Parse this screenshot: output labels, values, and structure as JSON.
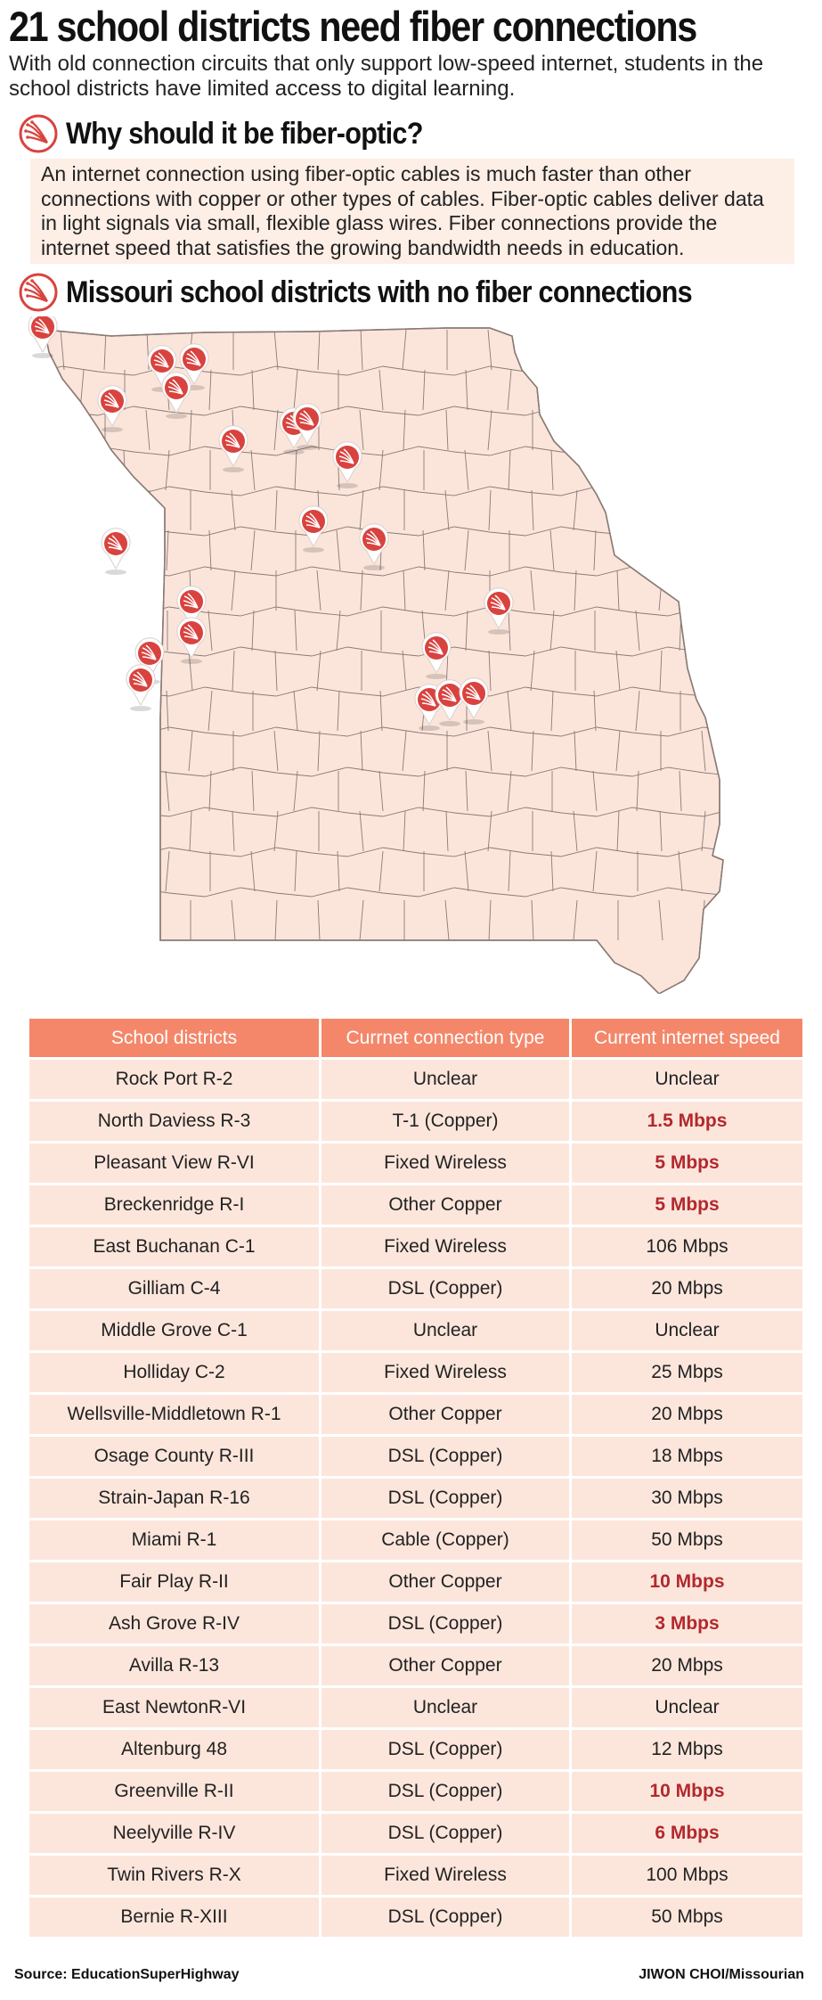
{
  "title": "21 school districts need fiber connections",
  "subtitle": "With old connection circuits that only support low-speed internet, students in the school districts have limited access to digital learning.",
  "section_why": {
    "heading": "Why should it be fiber-optic?",
    "body": "An internet connection using fiber-optic cables is much faster than other connections with copper or other types of cables. Fiber-optic cables deliver data in light signals via small, flexible glass wires. Fiber connections provide the internet speed that satisfies the growing bandwidth needs in education."
  },
  "section_map": {
    "heading": "Missouri school districts with no fiber connections",
    "marker_icon": "fiber-optic-pin-icon",
    "marker_count": 21
  },
  "colors": {
    "accent": "#f4876a",
    "marker": "#d9433f",
    "map_fill": "#fbe5db",
    "map_border": "#8a7a74",
    "row_fill": "#fce6dc",
    "slow_text": "#b3282d"
  },
  "table": {
    "headers": [
      "School districts",
      "Currnet connection type",
      "Current internet speed"
    ],
    "rows": [
      {
        "district": "Rock Port R-2",
        "type": "Unclear",
        "speed": "Unclear",
        "slow": false
      },
      {
        "district": "North Daviess R-3",
        "type": "T-1 (Copper)",
        "speed": "1.5 Mbps",
        "slow": true
      },
      {
        "district": "Pleasant View R-VI",
        "type": "Fixed Wireless",
        "speed": "5 Mbps",
        "slow": true
      },
      {
        "district": "Breckenridge R-I",
        "type": "Other Copper",
        "speed": "5 Mbps",
        "slow": true
      },
      {
        "district": "East Buchanan C-1",
        "type": "Fixed Wireless",
        "speed": "106 Mbps",
        "slow": false
      },
      {
        "district": "Gilliam C-4",
        "type": "DSL (Copper)",
        "speed": "20 Mbps",
        "slow": false
      },
      {
        "district": "Middle Grove C-1",
        "type": "Unclear",
        "speed": "Unclear",
        "slow": false
      },
      {
        "district": "Holliday C-2",
        "type": "Fixed Wireless",
        "speed": "25 Mbps",
        "slow": false
      },
      {
        "district": "Wellsville-Middletown R-1",
        "type": "Other Copper",
        "speed": "20 Mbps",
        "slow": false
      },
      {
        "district": "Osage County R-III",
        "type": "DSL (Copper)",
        "speed": "18 Mbps",
        "slow": false
      },
      {
        "district": "Strain-Japan R-16",
        "type": "DSL (Copper)",
        "speed": "30 Mbps",
        "slow": false
      },
      {
        "district": "Miami R-1",
        "type": "Cable (Copper)",
        "speed": "50 Mbps",
        "slow": false
      },
      {
        "district": "Fair Play R-II",
        "type": "Other Copper",
        "speed": "10 Mbps",
        "slow": true
      },
      {
        "district": "Ash Grove R-IV",
        "type": "DSL (Copper)",
        "speed": "3 Mbps",
        "slow": true
      },
      {
        "district": "Avilla R-13",
        "type": "Other Copper",
        "speed": "20 Mbps",
        "slow": false
      },
      {
        "district": "East NewtonR-VI",
        "type": "Unclear",
        "speed": "Unclear",
        "slow": false
      },
      {
        "district": "Altenburg 48",
        "type": "DSL (Copper)",
        "speed": "12 Mbps",
        "slow": false
      },
      {
        "district": "Greenville R-II",
        "type": "DSL (Copper)",
        "speed": "10 Mbps",
        "slow": true
      },
      {
        "district": "Neelyville R-IV",
        "type": "DSL (Copper)",
        "speed": "6 Mbps",
        "slow": true
      },
      {
        "district": "Twin Rivers R-X",
        "type": "Fixed Wireless",
        "speed": "100 Mbps",
        "slow": false
      },
      {
        "district": "Bernie R-XIII",
        "type": "DSL (Copper)",
        "speed": "50 Mbps",
        "slow": false
      }
    ]
  },
  "footer": {
    "source": "Source: EducationSuperHighway",
    "credit": "JIWON CHOI/Missourian"
  }
}
